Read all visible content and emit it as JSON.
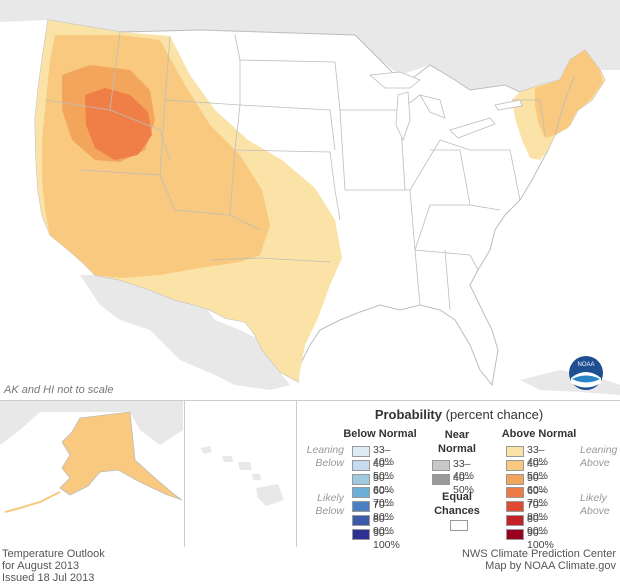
{
  "map": {
    "scale_note": "AK and HI not to scale",
    "logo_text": "NOAA"
  },
  "footer": {
    "left": [
      "Temperature Outlook",
      "for August 2013",
      "Issued 18 Jul 2013"
    ],
    "right": [
      "NWS Climate Prediction Center",
      "Map by NOAA Climate.gov"
    ]
  },
  "legend": {
    "title_bold": "Probability",
    "title_rest": " (percent chance)",
    "below_header": "Below Normal",
    "near_header": [
      "Near",
      "Normal"
    ],
    "above_header": "Above Normal",
    "leaning_below": [
      "Leaning",
      "Below"
    ],
    "likely_below": [
      "Likely",
      "Below"
    ],
    "leaning_above": [
      "Leaning",
      "Above"
    ],
    "likely_above": [
      "Likely",
      "Above"
    ],
    "equal_chances": [
      "Equal",
      "Chances"
    ],
    "below": [
      {
        "label": "33–40%",
        "color": "#deebf7"
      },
      {
        "label": "40–50%",
        "color": "#c6dbef"
      },
      {
        "label": "50–60%",
        "color": "#9ecae1"
      },
      {
        "label": "60–70%",
        "color": "#6baed6"
      },
      {
        "label": "70–80%",
        "color": "#4a7fc1"
      },
      {
        "label": "80–90%",
        "color": "#3b5ba8"
      },
      {
        "label": "90–100%",
        "color": "#2e3192"
      }
    ],
    "near": [
      {
        "label": "33–40%",
        "color": "#c8c8c8"
      },
      {
        "label": "40–50%",
        "color": "#9a9a9a"
      }
    ],
    "above": [
      {
        "label": "33–40%",
        "color": "#fbe3a8"
      },
      {
        "label": "40–50%",
        "color": "#f8c97e"
      },
      {
        "label": "50–60%",
        "color": "#f3a55c"
      },
      {
        "label": "60–70%",
        "color": "#ee7a45"
      },
      {
        "label": "70–80%",
        "color": "#e04a33"
      },
      {
        "label": "80–90%",
        "color": "#c4202a"
      },
      {
        "label": "90–100%",
        "color": "#98001f"
      }
    ],
    "equal_color": "#ffffff"
  },
  "colors": {
    "land_other": "#e8e8e8",
    "water": "#ffffff",
    "state_border": "#bdbdbd",
    "lean_above": "#fbe3a8",
    "above_40": "#f8c97e",
    "above_50": "#f3a55c",
    "above_60": "#ee7a45"
  }
}
